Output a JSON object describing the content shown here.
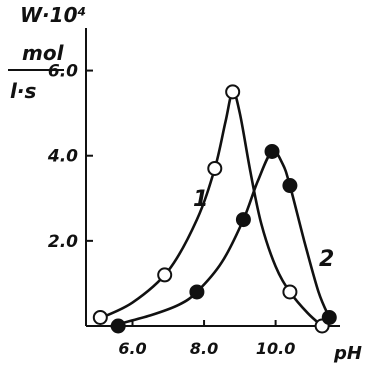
{
  "chart_data": {
    "type": "line",
    "ylabel": {
      "line1": "W·10⁴",
      "numerator": "mol",
      "denominator": "l·s"
    },
    "xlabel": "pH",
    "xlim": [
      4.7,
      11.8
    ],
    "ylim": [
      0,
      7.0
    ],
    "xticks": [
      6.0,
      8.0,
      10.0
    ],
    "xtick_labels": [
      "6.0",
      "8.0",
      "10.0"
    ],
    "yticks": [
      2.0,
      4.0,
      6.0
    ],
    "ytick_labels": [
      "2.0",
      "4.0",
      "6.0"
    ],
    "grid": false,
    "series": [
      {
        "name": "1",
        "marker": "open-circle",
        "points": [
          {
            "x": 5.1,
            "y": 0.2
          },
          {
            "x": 6.9,
            "y": 1.2
          },
          {
            "x": 8.3,
            "y": 3.7
          },
          {
            "x": 8.8,
            "y": 5.5
          },
          {
            "x": 10.4,
            "y": 0.8
          },
          {
            "x": 11.3,
            "y": 0.0
          }
        ],
        "curve": [
          [
            5.0,
            0.15
          ],
          [
            6.0,
            0.55
          ],
          [
            7.0,
            1.3
          ],
          [
            7.8,
            2.5
          ],
          [
            8.3,
            3.7
          ],
          [
            8.6,
            4.8
          ],
          [
            8.8,
            5.5
          ],
          [
            9.0,
            5.0
          ],
          [
            9.3,
            3.6
          ],
          [
            9.6,
            2.4
          ],
          [
            10.0,
            1.4
          ],
          [
            10.4,
            0.8
          ],
          [
            10.9,
            0.3
          ],
          [
            11.3,
            0.0
          ]
        ]
      },
      {
        "name": "2",
        "marker": "filled-circle",
        "points": [
          {
            "x": 5.6,
            "y": 0.0
          },
          {
            "x": 7.8,
            "y": 0.8
          },
          {
            "x": 9.1,
            "y": 2.5
          },
          {
            "x": 9.9,
            "y": 4.1
          },
          {
            "x": 10.4,
            "y": 3.3
          },
          {
            "x": 11.5,
            "y": 0.2
          }
        ],
        "curve": [
          [
            5.4,
            0.0
          ],
          [
            6.5,
            0.25
          ],
          [
            7.3,
            0.5
          ],
          [
            7.8,
            0.8
          ],
          [
            8.5,
            1.5
          ],
          [
            9.1,
            2.5
          ],
          [
            9.5,
            3.4
          ],
          [
            9.9,
            4.1
          ],
          [
            10.2,
            3.8
          ],
          [
            10.4,
            3.3
          ],
          [
            10.8,
            2.0
          ],
          [
            11.2,
            0.8
          ],
          [
            11.5,
            0.2
          ]
        ]
      }
    ]
  }
}
